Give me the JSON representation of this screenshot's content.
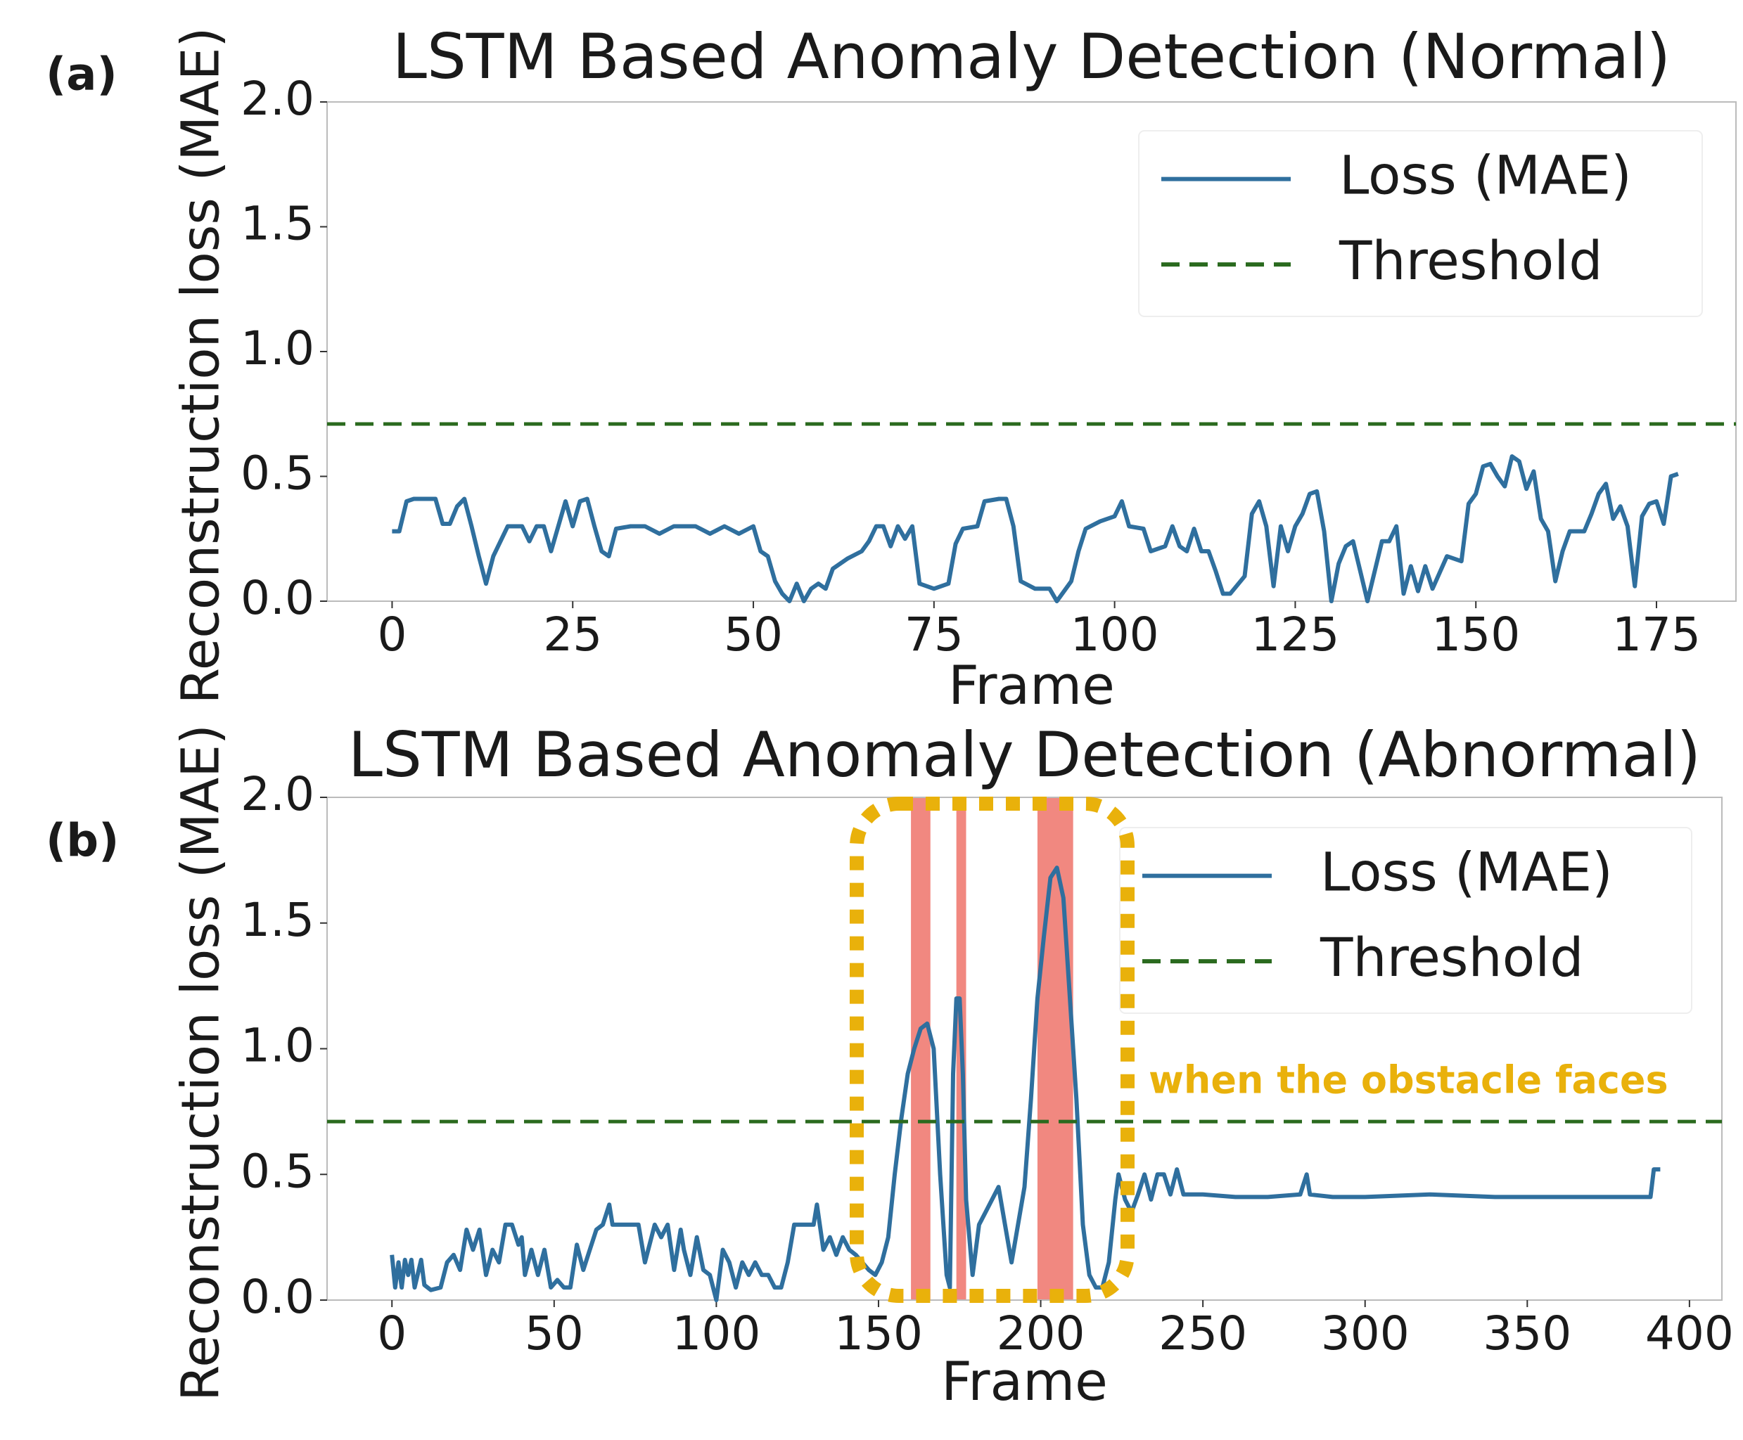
{
  "chart_data": [
    {
      "type": "line",
      "panel_label": "(a)",
      "title": "LSTM Based Anomaly Detection (Normal)",
      "xlabel": "Frame",
      "ylabel": "Reconstruction loss (MAE)",
      "xlim": [
        -9,
        186
      ],
      "ylim": [
        0,
        2
      ],
      "xticks": [
        0,
        25,
        50,
        75,
        100,
        125,
        150,
        175
      ],
      "yticks": [
        {
          "value": 0,
          "label": "0.0"
        },
        0.5,
        {
          "value": 1,
          "label": "1.0"
        },
        1.5,
        {
          "value": 2,
          "label": "2.0"
        }
      ],
      "legend": "upper right",
      "series": [
        {
          "name": "Loss (MAE)",
          "color": "#2f6f9e",
          "linestyle": "solid",
          "x": [
            0,
            1,
            2,
            3,
            4,
            6,
            7,
            8,
            9,
            10,
            11,
            12,
            13,
            14,
            16,
            18,
            19,
            20,
            21,
            22,
            23,
            24,
            25,
            26,
            27,
            28,
            29,
            30,
            31,
            33,
            35,
            37,
            39,
            42,
            44,
            46,
            48,
            50,
            51,
            52,
            53,
            54,
            55,
            56,
            57,
            58,
            59,
            60,
            61,
            63,
            65,
            66,
            67,
            68,
            69,
            70,
            71,
            72,
            73,
            75,
            77,
            78,
            79,
            81,
            82,
            84,
            85,
            86,
            87,
            89,
            91,
            92,
            94,
            95,
            96,
            98,
            100,
            101,
            102,
            104,
            105,
            107,
            108,
            109,
            110,
            111,
            112,
            113,
            114,
            115,
            116,
            118,
            119,
            120,
            121,
            122,
            123,
            124,
            125,
            126,
            127,
            128,
            129,
            130,
            131,
            132,
            133,
            134,
            135,
            136,
            137,
            138,
            139,
            140,
            141,
            142,
            143,
            144,
            146,
            148,
            149,
            150,
            151,
            152,
            153,
            154,
            155,
            156,
            157,
            158,
            159,
            160,
            161,
            162,
            163,
            165,
            166,
            167,
            168,
            169,
            170,
            171,
            172,
            173,
            174,
            175,
            176,
            177,
            178
          ],
          "values": [
            0.28,
            0.28,
            0.4,
            0.41,
            0.41,
            0.41,
            0.31,
            0.31,
            0.38,
            0.41,
            0.3,
            0.18,
            0.07,
            0.18,
            0.3,
            0.3,
            0.24,
            0.3,
            0.3,
            0.2,
            0.3,
            0.4,
            0.3,
            0.4,
            0.41,
            0.3,
            0.2,
            0.18,
            0.29,
            0.3,
            0.3,
            0.27,
            0.3,
            0.3,
            0.27,
            0.3,
            0.27,
            0.3,
            0.2,
            0.18,
            0.08,
            0.03,
            0.0,
            0.07,
            0.0,
            0.05,
            0.07,
            0.05,
            0.13,
            0.17,
            0.2,
            0.24,
            0.3,
            0.3,
            0.22,
            0.3,
            0.25,
            0.3,
            0.07,
            0.05,
            0.07,
            0.23,
            0.29,
            0.3,
            0.4,
            0.41,
            0.41,
            0.3,
            0.08,
            0.05,
            0.05,
            0.0,
            0.08,
            0.2,
            0.29,
            0.32,
            0.34,
            0.4,
            0.3,
            0.29,
            0.2,
            0.22,
            0.3,
            0.22,
            0.2,
            0.29,
            0.2,
            0.2,
            0.12,
            0.03,
            0.03,
            0.1,
            0.35,
            0.4,
            0.3,
            0.06,
            0.3,
            0.2,
            0.3,
            0.35,
            0.43,
            0.44,
            0.28,
            0.0,
            0.15,
            0.22,
            0.24,
            0.12,
            0.0,
            0.12,
            0.24,
            0.24,
            0.3,
            0.03,
            0.14,
            0.04,
            0.14,
            0.05,
            0.18,
            0.16,
            0.39,
            0.43,
            0.54,
            0.55,
            0.5,
            0.46,
            0.58,
            0.56,
            0.45,
            0.52,
            0.33,
            0.28,
            0.08,
            0.2,
            0.28,
            0.28,
            0.35,
            0.43,
            0.47,
            0.33,
            0.38,
            0.3,
            0.06,
            0.34,
            0.39,
            0.4,
            0.31,
            0.5,
            0.51
          ]
        },
        {
          "name": "Threshold",
          "color": "#2a6a1e",
          "linestyle": "dashed",
          "y": 0.71
        }
      ]
    },
    {
      "type": "line",
      "panel_label": "(b)",
      "title": "LSTM Based Anomaly Detection (Abnormal)",
      "xlabel": "Frame",
      "ylabel": "Reconstruction loss (MAE)",
      "xlim": [
        -20,
        410
      ],
      "ylim": [
        0,
        2
      ],
      "xticks": [
        0,
        50,
        100,
        150,
        200,
        250,
        300,
        350,
        400
      ],
      "yticks": [
        {
          "value": 0,
          "label": "0.0"
        },
        0.5,
        {
          "value": 1,
          "label": "1.0"
        },
        1.5,
        {
          "value": 2,
          "label": "2.0"
        }
      ],
      "legend": "upper right",
      "annotation": "when the obstacle faces",
      "highlight_color": "#f07b72",
      "highlight_spans": [
        [
          160,
          166
        ],
        [
          174,
          177
        ],
        [
          199,
          210
        ]
      ],
      "series": [
        {
          "name": "Loss (MAE)",
          "color": "#2f6f9e",
          "linestyle": "solid",
          "x": [
            0,
            1,
            2,
            3,
            4,
            5,
            6,
            7,
            9,
            10,
            12,
            15,
            17,
            19,
            21,
            23,
            25,
            27,
            29,
            31,
            33,
            35,
            37,
            39,
            40,
            41,
            43,
            45,
            47,
            49,
            51,
            53,
            55,
            57,
            59,
            61,
            63,
            65,
            67,
            68,
            70,
            72,
            74,
            76,
            78,
            80,
            81,
            83,
            85,
            87,
            89,
            90,
            92,
            94,
            96,
            98,
            100,
            102,
            104,
            106,
            108,
            110,
            112,
            114,
            116,
            118,
            120,
            122,
            124,
            126,
            128,
            130,
            131,
            133,
            135,
            137,
            139,
            141,
            143,
            145,
            147,
            149,
            151,
            153,
            155,
            157,
            159,
            161,
            163,
            165,
            167,
            169,
            171,
            172,
            173,
            174,
            175,
            176,
            177,
            179,
            181,
            183,
            185,
            187,
            189,
            191,
            193,
            195,
            197,
            199,
            201,
            203,
            205,
            207,
            209,
            211,
            213,
            215,
            217,
            219,
            221,
            223,
            224,
            226,
            228,
            230,
            232,
            234,
            236,
            238,
            240,
            242,
            244,
            250,
            260,
            270,
            280,
            282,
            283,
            290,
            300,
            320,
            340,
            360,
            380,
            388,
            389,
            391
          ],
          "values": [
            0.18,
            0.05,
            0.15,
            0.05,
            0.16,
            0.1,
            0.16,
            0.05,
            0.16,
            0.06,
            0.04,
            0.05,
            0.15,
            0.18,
            0.12,
            0.28,
            0.2,
            0.28,
            0.1,
            0.2,
            0.15,
            0.3,
            0.3,
            0.22,
            0.25,
            0.1,
            0.2,
            0.1,
            0.2,
            0.05,
            0.08,
            0.05,
            0.05,
            0.22,
            0.12,
            0.2,
            0.28,
            0.3,
            0.38,
            0.3,
            0.3,
            0.3,
            0.3,
            0.3,
            0.15,
            0.25,
            0.3,
            0.25,
            0.3,
            0.12,
            0.28,
            0.2,
            0.1,
            0.25,
            0.12,
            0.1,
            0.0,
            0.2,
            0.15,
            0.05,
            0.15,
            0.1,
            0.15,
            0.1,
            0.1,
            0.05,
            0.05,
            0.15,
            0.3,
            0.3,
            0.3,
            0.3,
            0.38,
            0.2,
            0.25,
            0.18,
            0.25,
            0.2,
            0.18,
            0.15,
            0.12,
            0.1,
            0.15,
            0.25,
            0.5,
            0.72,
            0.9,
            1.0,
            1.08,
            1.1,
            1.0,
            0.5,
            0.1,
            0.05,
            0.9,
            1.2,
            1.2,
            0.9,
            0.4,
            0.1,
            0.3,
            0.35,
            0.4,
            0.45,
            0.3,
            0.15,
            0.3,
            0.45,
            0.8,
            1.2,
            1.45,
            1.68,
            1.72,
            1.6,
            1.2,
            0.8,
            0.3,
            0.1,
            0.05,
            0.05,
            0.15,
            0.4,
            0.5,
            0.4,
            0.35,
            0.42,
            0.5,
            0.4,
            0.5,
            0.5,
            0.42,
            0.52,
            0.42,
            0.42,
            0.41,
            0.41,
            0.42,
            0.5,
            0.42,
            0.41,
            0.41,
            0.42,
            0.41,
            0.41,
            0.41,
            0.41,
            0.52,
            0.52
          ]
        },
        {
          "name": "Threshold",
          "color": "#2a6a1e",
          "linestyle": "dashed",
          "y": 0.71
        }
      ]
    }
  ]
}
